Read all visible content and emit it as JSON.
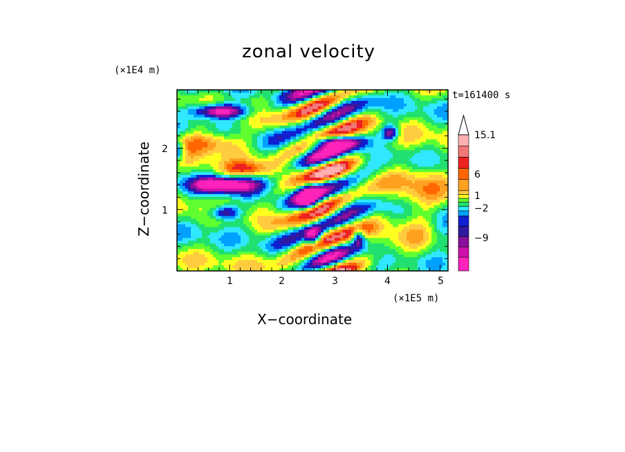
{
  "chart_data": {
    "type": "heatmap",
    "title": "zonal velocity",
    "xlabel": "X−coordinate",
    "ylabel": "Z−coordinate",
    "x_scale_label": "(×1E5 m)",
    "y_scale_label": "(×1E4 m)",
    "time_label": "t=161400 s",
    "xlim": [
      0,
      5.15
    ],
    "ylim": [
      0,
      2.95
    ],
    "x_ticks": [
      "1",
      "2",
      "3",
      "4",
      "5"
    ],
    "y_ticks": [
      "1",
      "2"
    ],
    "colorbar": {
      "levels": [
        -15,
        -12,
        -9,
        -6,
        -4,
        -2,
        -1,
        0,
        1,
        2,
        3,
        6,
        9,
        12,
        15.1
      ],
      "labels": [
        "15.1",
        "6",
        "1",
        "−2",
        "−9"
      ],
      "colors": [
        "#ff22bb",
        "#cc11aa",
        "#88109a",
        "#3018a0",
        "#1020d0",
        "#00a0ff",
        "#30e8ff",
        "#20e070",
        "#60ff30",
        "#ffff20",
        "#ffcc40",
        "#ffa020",
        "#ff6600",
        "#ee2020",
        "#f07878",
        "#ffb0b0"
      ]
    }
  }
}
